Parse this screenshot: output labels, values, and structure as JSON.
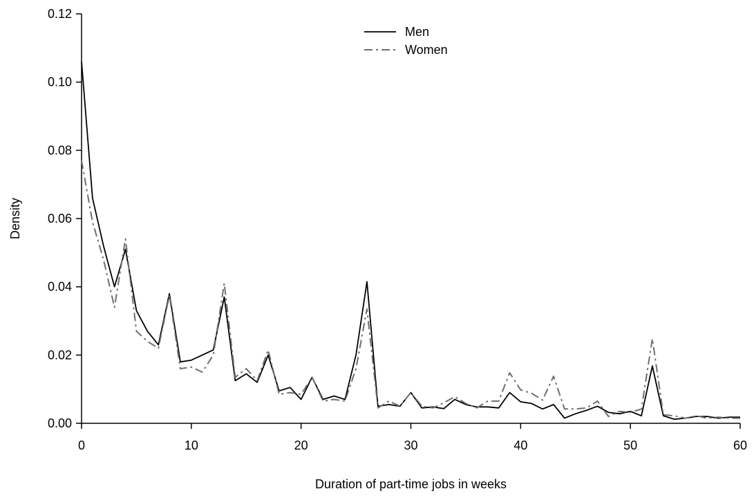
{
  "chart_data": {
    "type": "line",
    "title": "",
    "xlabel": "Duration of part-time jobs in weeks",
    "ylabel": "Density",
    "xlim": [
      0,
      60
    ],
    "ylim": [
      0,
      0.12
    ],
    "x_ticks": [
      "0",
      "10",
      "20",
      "30",
      "40",
      "50",
      "60"
    ],
    "y_ticks": [
      "0.00",
      "0.02",
      "0.04",
      "0.06",
      "0.08",
      "0.10",
      "0.12"
    ],
    "grid": false,
    "legend_position": "top-center",
    "x": [
      0,
      1,
      2,
      3,
      4,
      5,
      6,
      7,
      8,
      9,
      10,
      11,
      12,
      13,
      14,
      15,
      16,
      17,
      18,
      19,
      20,
      21,
      22,
      23,
      24,
      25,
      26,
      27,
      28,
      29,
      30,
      31,
      32,
      33,
      34,
      35,
      36,
      37,
      38,
      39,
      40,
      41,
      42,
      43,
      44,
      45,
      46,
      47,
      48,
      49,
      50,
      51,
      52,
      53,
      54,
      55,
      56,
      57,
      58,
      59,
      60
    ],
    "series": [
      {
        "name": "Men",
        "color": "#000000",
        "dash": "solid",
        "values": [
          0.106,
          0.066,
          0.052,
          0.04,
          0.051,
          0.033,
          0.027,
          0.023,
          0.038,
          0.018,
          0.0185,
          0.02,
          0.0215,
          0.037,
          0.0125,
          0.0145,
          0.012,
          0.02,
          0.0095,
          0.0105,
          0.007,
          0.0135,
          0.007,
          0.008,
          0.007,
          0.02,
          0.0415,
          0.005,
          0.0055,
          0.005,
          0.009,
          0.0045,
          0.0048,
          0.0043,
          0.007,
          0.0055,
          0.0048,
          0.0048,
          0.0045,
          0.009,
          0.0063,
          0.0058,
          0.0042,
          0.0055,
          0.0015,
          0.0028,
          0.0038,
          0.005,
          0.0032,
          0.0028,
          0.0035,
          0.0022,
          0.0168,
          0.0022,
          0.0012,
          0.0015,
          0.002,
          0.002,
          0.0015,
          0.0018,
          0.0018
        ]
      },
      {
        "name": "Women",
        "color": "#6e6e6e",
        "dash": "dashdot",
        "values": [
          0.077,
          0.059,
          0.048,
          0.034,
          0.054,
          0.027,
          0.024,
          0.022,
          0.0375,
          0.016,
          0.0165,
          0.015,
          0.02,
          0.041,
          0.0135,
          0.016,
          0.0125,
          0.0215,
          0.0085,
          0.009,
          0.0085,
          0.0135,
          0.0065,
          0.007,
          0.0065,
          0.016,
          0.0335,
          0.0045,
          0.0065,
          0.005,
          0.009,
          0.005,
          0.0045,
          0.006,
          0.0078,
          0.0058,
          0.0045,
          0.0065,
          0.0065,
          0.0148,
          0.0098,
          0.0088,
          0.0068,
          0.0138,
          0.0042,
          0.0042,
          0.0045,
          0.0065,
          0.002,
          0.0035,
          0.0032,
          0.0042,
          0.0248,
          0.0025,
          0.0022,
          0.0015,
          0.0022,
          0.0015,
          0.0018,
          0.0015,
          0.0015
        ]
      }
    ]
  }
}
